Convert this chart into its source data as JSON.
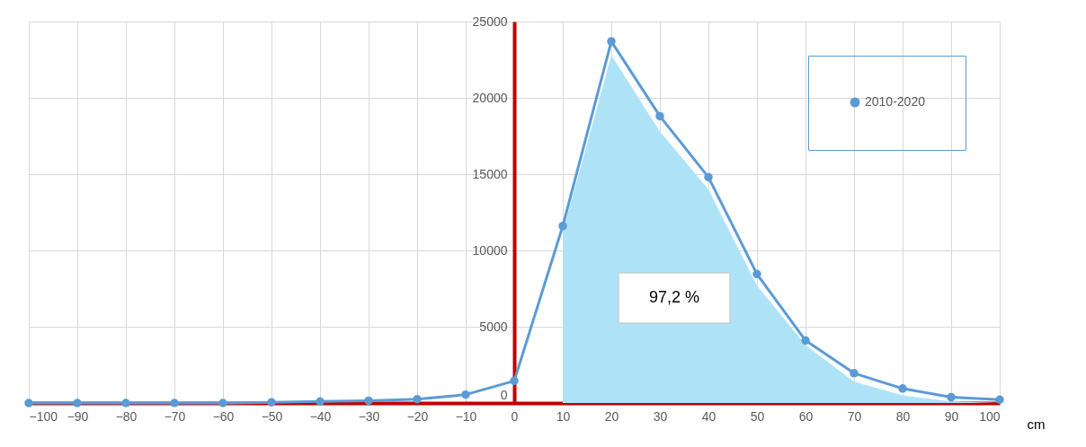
{
  "chart_data": {
    "type": "line",
    "xlabel": "cm",
    "x": [
      -100,
      -90,
      -80,
      -70,
      -60,
      -50,
      -40,
      -30,
      -20,
      -10,
      0,
      10,
      20,
      30,
      40,
      50,
      60,
      70,
      80,
      90,
      100
    ],
    "series": [
      {
        "type": "area",
        "color": "#aee3f7",
        "marker": "none",
        "x": [
          10,
          20,
          30,
          40,
          50,
          60,
          70,
          80,
          90,
          100
        ],
        "values": [
          11200,
          22800,
          17800,
          14000,
          7700,
          3800,
          1400,
          500,
          100,
          0
        ]
      },
      {
        "name": "2010-2020",
        "color": "#5b9bd5",
        "values": [
          0,
          0,
          0,
          0,
          0,
          50,
          100,
          150,
          250,
          550,
          1450,
          11600,
          23700,
          18800,
          14800,
          8450,
          4100,
          1950,
          950,
          380,
          220
        ]
      }
    ],
    "xlim": [
      -100,
      100
    ],
    "xticks": [
      -100,
      -90,
      -80,
      -70,
      -60,
      -50,
      -40,
      -30,
      -20,
      -10,
      0,
      10,
      20,
      30,
      40,
      50,
      60,
      70,
      80,
      90,
      100
    ],
    "ylim": [
      0,
      25000
    ],
    "yticks": [
      0,
      5000,
      10000,
      15000,
      20000,
      25000
    ],
    "annotations": [
      "97,2 %"
    ],
    "grid": true,
    "legend": "top right",
    "marker": "circle",
    "line_style": "solid"
  }
}
